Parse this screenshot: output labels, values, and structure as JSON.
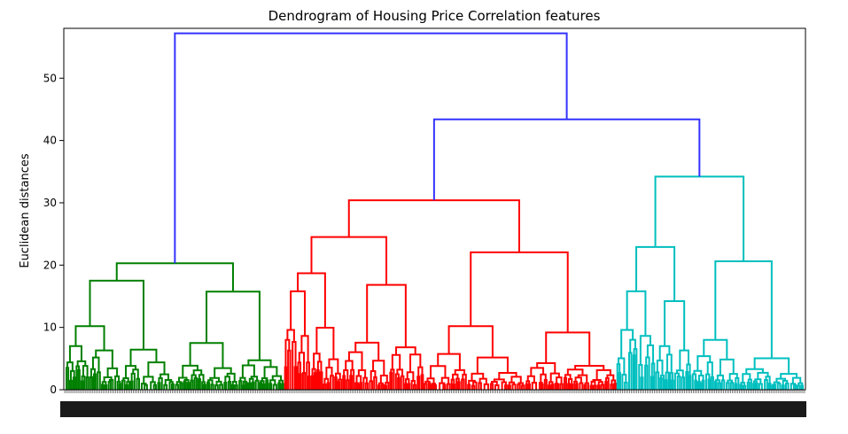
{
  "chart_data": {
    "type": "dendrogram",
    "title": "Dendrogram of Housing Price Correlation features",
    "xlabel": "",
    "ylabel": "Euclidean distances",
    "ylim": [
      0,
      58
    ],
    "yticks": [
      0,
      10,
      20,
      30,
      40,
      50
    ],
    "grid": false,
    "leaf_labels_legible": false,
    "link_colors": {
      "root": "#3333ff",
      "cluster_1": "#008000",
      "cluster_2": "#ff0000",
      "cluster_3": "#00bfbf"
    },
    "merges": [
      {
        "id": "root",
        "height": 57.2,
        "left": "cluster_1",
        "right": "upper_join",
        "color": "root"
      },
      {
        "id": "upper_join",
        "height": 43.4,
        "left": "cluster_2",
        "right": "cluster_3",
        "color": "root"
      },
      {
        "id": "cluster_1",
        "height": 20.3,
        "color": "cluster_1",
        "sub_heights": [
          17.5,
          10.2,
          10.0,
          7.5,
          5.5
        ]
      },
      {
        "id": "cluster_2",
        "height": 30.4,
        "color": "cluster_2",
        "sub_heights": [
          24.5,
          18.7,
          15.8,
          13.7,
          10.8,
          10.2,
          8.2,
          6.1
        ]
      },
      {
        "id": "cluster_3",
        "height": 34.2,
        "color": "cluster_3",
        "sub_heights": [
          22.9,
          15.8,
          13.7,
          10.0,
          8.0,
          7.7
        ]
      }
    ],
    "leaf_share": {
      "cluster_1": 0.297,
      "cluster_2": 0.448,
      "cluster_3": 0.255
    }
  }
}
